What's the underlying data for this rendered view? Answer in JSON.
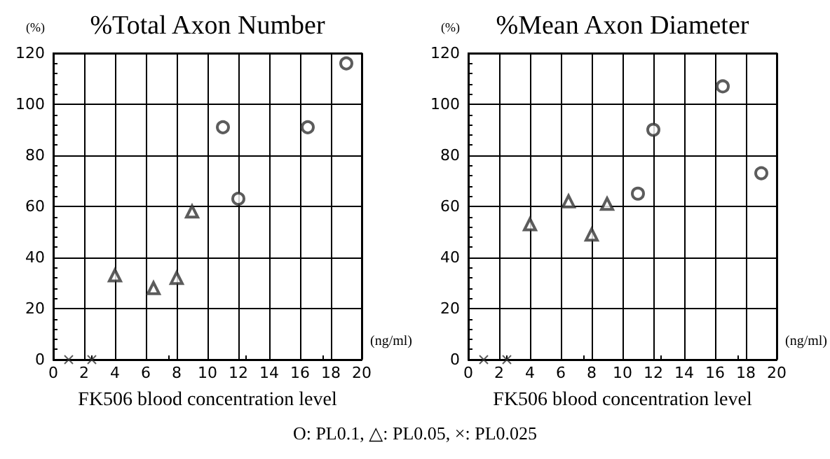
{
  "chart_data": [
    {
      "type": "scatter",
      "title": "%Total Axon Number",
      "xlabel": "FK506 blood concentration level",
      "ylabel": "(%)",
      "annotations": [
        "(ng/ml)"
      ],
      "xlim": [
        0,
        20
      ],
      "xticks": [
        0,
        2,
        4,
        6,
        8,
        10,
        12,
        14,
        16,
        18,
        20
      ],
      "ylim": [
        0,
        120
      ],
      "yticks": [
        0,
        20,
        40,
        60,
        80,
        100,
        120
      ],
      "grid": true,
      "series": [
        {
          "color": "#333333",
          "marker": "circle",
          "x": [
            11,
            12,
            16.5,
            19
          ],
          "values": [
            91,
            63,
            91,
            116
          ]
        },
        {
          "color": "#333333",
          "marker": "triangle",
          "x": [
            4,
            6.5,
            8,
            9
          ],
          "values": [
            33,
            28,
            32,
            58
          ]
        },
        {
          "color": "#333333",
          "marker": "cross",
          "x": [
            1,
            2.5
          ],
          "values": [
            0,
            0
          ]
        }
      ]
    },
    {
      "type": "scatter",
      "title": "%Mean Axon Diameter",
      "xlabel": "FK506 blood concentration level",
      "ylabel": "(%)",
      "annotations": [
        "(ng/ml)",
        "O: PL0.1, △: PL0.05, ×: PL0.025"
      ],
      "xlim": [
        0,
        20
      ],
      "xticks": [
        0,
        2,
        4,
        6,
        8,
        10,
        12,
        14,
        16,
        18,
        20
      ],
      "ylim": [
        0,
        120
      ],
      "yticks": [
        0,
        20,
        40,
        60,
        80,
        100,
        120
      ],
      "grid": true,
      "series": [
        {
          "color": "#333333",
          "marker": "circle",
          "x": [
            11,
            12,
            16.5,
            19
          ],
          "values": [
            65,
            90,
            107,
            73
          ]
        },
        {
          "color": "#333333",
          "marker": "triangle",
          "x": [
            4,
            6.5,
            8,
            9
          ],
          "values": [
            53,
            62,
            49,
            61
          ]
        },
        {
          "color": "#333333",
          "marker": "cross",
          "x": [
            1,
            2.5
          ],
          "values": [
            0,
            0
          ]
        }
      ]
    }
  ]
}
